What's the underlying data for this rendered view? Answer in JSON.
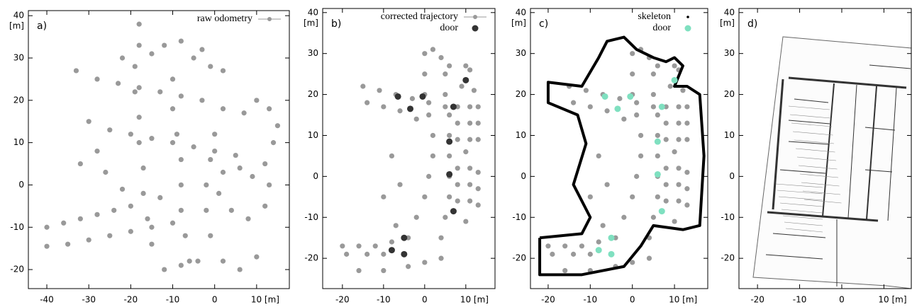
{
  "chart_data": [
    {
      "type": "scatter",
      "panel_label": "a)",
      "ylabel": "[m]",
      "legend": "top-right",
      "xlim": [
        -44.4,
        17.8
      ],
      "ylim": [
        -24.5,
        41.2
      ],
      "xticks": [
        -40,
        -30,
        -20,
        -10,
        0,
        {
          "value": 10,
          "label": "10 [m]"
        }
      ],
      "yticks": [
        -20,
        -10,
        0,
        10,
        20,
        30,
        40
      ],
      "series": [
        {
          "name": "raw odometry",
          "color": "#999999",
          "style": "linespoints",
          "x": [
            -40,
            -36,
            -32,
            -28,
            -24,
            -20,
            -40,
            -35,
            -30,
            -25,
            -20,
            -15,
            -10,
            -18,
            -18,
            -19,
            -19,
            -18,
            -18,
            -17,
            -17,
            -16,
            -15,
            -10,
            -10,
            -9,
            -8,
            -8,
            -8,
            -7,
            -6,
            -33,
            -28,
            -23,
            -18,
            -13,
            -8,
            -3,
            2,
            7,
            -30,
            -25,
            -20,
            -15,
            -10,
            -5,
            0,
            5,
            10,
            13,
            15,
            14,
            12,
            13,
            12,
            8,
            4,
            1,
            2,
            6,
            9,
            0,
            -1,
            -2,
            -2,
            -1,
            2,
            6,
            10,
            -12,
            -8,
            -4,
            -22,
            -15,
            -12,
            -8,
            -5,
            -3,
            -1,
            2,
            -32,
            -28,
            -26,
            -22,
            -13
          ],
          "y": [
            -10,
            -9,
            -8,
            -7,
            -6,
            -5,
            -14.5,
            -14,
            -13,
            -12,
            -11,
            -10,
            -9,
            38,
            33,
            28,
            22,
            16,
            10,
            4,
            -2,
            -8,
            -14,
            25,
            18,
            12,
            6,
            0,
            -6,
            -12,
            -18,
            27,
            25,
            24,
            23,
            22,
            21,
            20,
            18,
            17,
            15,
            13,
            12,
            11,
            10,
            9,
            8,
            7,
            20,
            18,
            14,
            10,
            5,
            0,
            -5,
            -8,
            -6,
            -2,
            3,
            4,
            2,
            12,
            6,
            0,
            -6,
            -12,
            -18,
            -20,
            -17,
            -20,
            -19,
            -18,
            30,
            31,
            33,
            34,
            30,
            32,
            28,
            27,
            5,
            8,
            3,
            -1,
            -3
          ]
        }
      ]
    },
    {
      "type": "scatter",
      "panel_label": "b)",
      "ylabel": "[m]",
      "legend": "top-right",
      "xlim": [
        -24.8,
        17.1
      ],
      "ylim": [
        -27.4,
        41
      ],
      "xticks": [
        -20,
        -10,
        0,
        {
          "value": 10,
          "label": "10 [m]"
        }
      ],
      "yticks": [
        -20,
        -10,
        0,
        10,
        20,
        30,
        40
      ],
      "series": [
        {
          "name": "corrected trajectory",
          "color": "#999999",
          "style": "linespoints",
          "x": [
            -15,
            -11,
            -7,
            -3,
            1,
            5,
            9,
            12,
            -14,
            -10,
            -6,
            -2,
            0,
            0,
            1,
            2,
            2,
            1,
            0,
            -2,
            -4,
            -5,
            5,
            5,
            6,
            6,
            6,
            6,
            6,
            5,
            4,
            8,
            11,
            13,
            8,
            11,
            13,
            8,
            11,
            13,
            10,
            8,
            11,
            13,
            8,
            11,
            13,
            8,
            11,
            13,
            10,
            -20,
            -16,
            -12,
            -8,
            -19,
            -14,
            -10,
            -16,
            -10,
            -4,
            0,
            4,
            0,
            2,
            4,
            6,
            10,
            11,
            -6,
            -8,
            -10,
            -7
          ],
          "y": [
            22,
            21,
            20,
            19,
            18,
            17,
            22,
            21,
            18,
            17,
            16,
            14,
            25,
            20,
            15,
            10,
            5,
            0,
            -5,
            -10,
            -15,
            -19,
            25,
            20,
            15,
            10,
            5,
            0,
            -5,
            -10,
            -15,
            17,
            17,
            17,
            13,
            13,
            13,
            9,
            9,
            9,
            6,
            2,
            2,
            1,
            -2,
            -2,
            -3,
            -6,
            -6,
            -7,
            -11,
            -17,
            -17,
            -17,
            -16,
            -19,
            -19,
            -19,
            -23,
            -23,
            -22,
            -21,
            -20,
            30,
            31,
            29,
            27,
            27,
            26,
            -2,
            5,
            -5,
            -12
          ]
        },
        {
          "name": "door",
          "color": "#333333",
          "style": "points",
          "x": [
            -6.5,
            -0.5,
            10,
            -3.5,
            7,
            6,
            6,
            7,
            -5,
            -8,
            -5
          ],
          "y": [
            19.5,
            19.5,
            23.5,
            16.5,
            17,
            8.5,
            0.5,
            -8.5,
            -15,
            -18,
            -19
          ]
        }
      ]
    },
    {
      "type": "scatter",
      "panel_label": "c)",
      "ylabel": "[m]",
      "legend": "top-right",
      "xlim": [
        -24.2,
        17.9
      ],
      "ylim": [
        -27.4,
        41
      ],
      "xticks": [
        -20,
        -10,
        0,
        {
          "value": 10,
          "label": "10 [m]"
        }
      ],
      "yticks": [
        -20,
        -10,
        0,
        10,
        20,
        30,
        40
      ],
      "series": [
        {
          "color": "#999999",
          "style": "points",
          "x": [
            -15,
            -11,
            -7,
            -3,
            1,
            5,
            9,
            12,
            -14,
            -10,
            -6,
            -2,
            0,
            0,
            1,
            2,
            2,
            1,
            0,
            -2,
            -4,
            -5,
            5,
            5,
            6,
            6,
            6,
            6,
            6,
            5,
            4,
            8,
            11,
            13,
            8,
            11,
            13,
            8,
            11,
            13,
            10,
            8,
            11,
            13,
            8,
            11,
            13,
            8,
            11,
            13,
            10,
            -20,
            -16,
            -12,
            -8,
            -19,
            -14,
            -10,
            -16,
            -10,
            -4,
            0,
            4,
            0,
            2,
            4,
            6,
            10,
            11,
            -6,
            -8,
            -10,
            -7
          ],
          "y": [
            22,
            21,
            20,
            19,
            18,
            17,
            22,
            21,
            18,
            17,
            16,
            14,
            25,
            20,
            15,
            10,
            5,
            0,
            -5,
            -10,
            -15,
            -19,
            25,
            20,
            15,
            10,
            5,
            0,
            -5,
            -10,
            -15,
            17,
            17,
            17,
            13,
            13,
            13,
            9,
            9,
            9,
            6,
            2,
            2,
            1,
            -2,
            -2,
            -3,
            -6,
            -6,
            -7,
            -11,
            -17,
            -17,
            -17,
            -16,
            -19,
            -19,
            -19,
            -23,
            -23,
            -22,
            -21,
            -20,
            30,
            31,
            29,
            27,
            27,
            26,
            -2,
            5,
            -5,
            -12
          ]
        },
        {
          "name": "skeleton",
          "color": "#000000",
          "style": "line",
          "x": [
            -22,
            -12,
            -10,
            -14,
            -11,
            -13,
            -20,
            -20,
            -12,
            -8,
            -6,
            -2,
            1,
            5,
            8,
            10,
            12,
            10,
            13,
            16,
            17,
            16,
            12,
            5,
            2,
            -2,
            -12,
            -22,
            -22
          ],
          "y": [
            -15,
            -14,
            -10,
            -2,
            8,
            15,
            18,
            23,
            22,
            29,
            33,
            34,
            31,
            29,
            28,
            29,
            27,
            22,
            22,
            20,
            5,
            -12,
            -13,
            -12,
            -17,
            -22,
            -24,
            -24,
            -15
          ]
        },
        {
          "name": "door",
          "color": "#7fe0c0",
          "style": "points",
          "x": [
            -6.5,
            -0.5,
            10,
            -3.5,
            7,
            6,
            6,
            7,
            -5,
            -8,
            -5
          ],
          "y": [
            19.5,
            19.5,
            23.5,
            16.5,
            17,
            8.5,
            0.5,
            -8.5,
            -15,
            -18,
            -19
          ]
        }
      ]
    },
    {
      "type": "map",
      "panel_label": "d)",
      "ylabel": "[m]",
      "xlim": [
        -24.4,
        16.5
      ],
      "ylim": [
        -27.4,
        41
      ],
      "xticks": [
        -20,
        -10,
        0,
        {
          "value": 10,
          "label": "10 [m]"
        }
      ],
      "yticks": [
        -20,
        -10,
        0,
        10,
        20,
        30,
        40
      ]
    }
  ]
}
